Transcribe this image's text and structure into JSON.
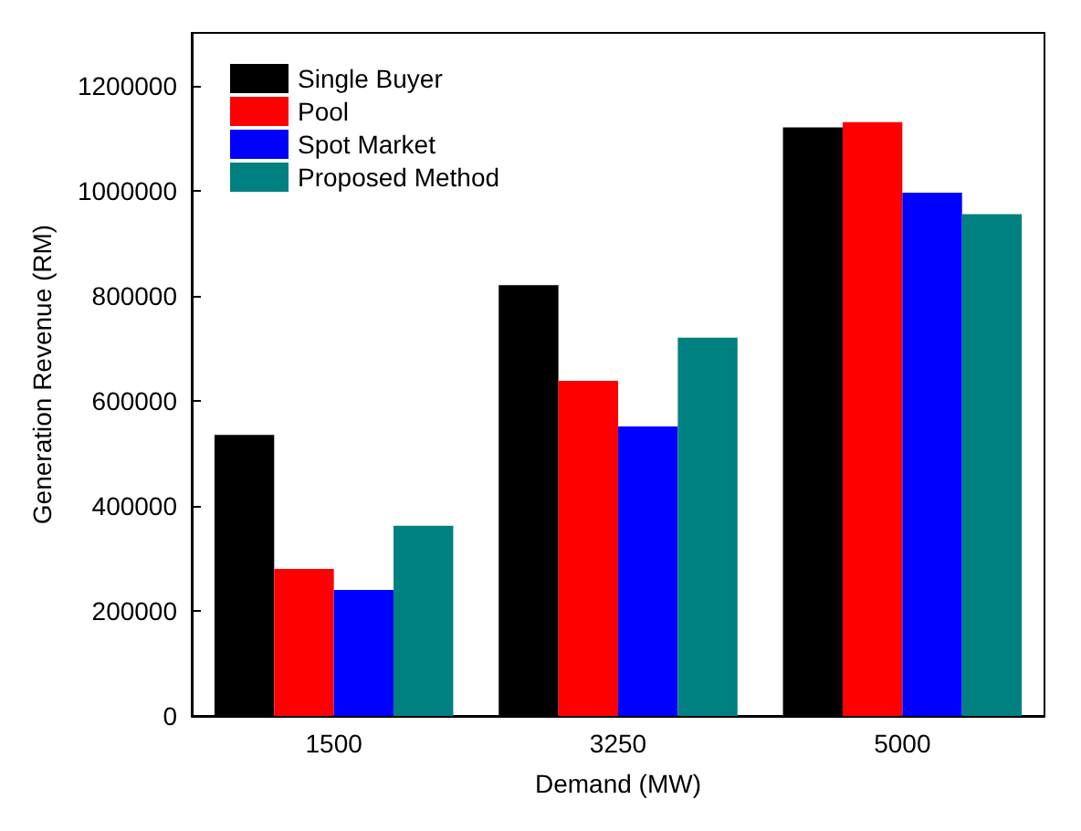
{
  "chart_data": {
    "type": "bar",
    "xlabel": "Demand (MW)",
    "ylabel": "Generation Revenue (RM)",
    "categories": [
      "1500",
      "3250",
      "5000"
    ],
    "series": [
      {
        "name": "Single Buyer",
        "color": "#000000",
        "values": [
          535000,
          820000,
          1120000
        ]
      },
      {
        "name": "Pool",
        "color": "#ff0000",
        "values": [
          280000,
          638000,
          1130000
        ]
      },
      {
        "name": "Spot Market",
        "color": "#0000ff",
        "values": [
          240000,
          551000,
          996000
        ]
      },
      {
        "name": "Proposed Method",
        "color": "#008080",
        "values": [
          362000,
          720000,
          955000
        ]
      }
    ],
    "ylim": [
      0,
      1300000
    ],
    "yticks": [
      0,
      200000,
      400000,
      600000,
      800000,
      1000000,
      1200000
    ],
    "grid": false,
    "legend": "top left"
  }
}
